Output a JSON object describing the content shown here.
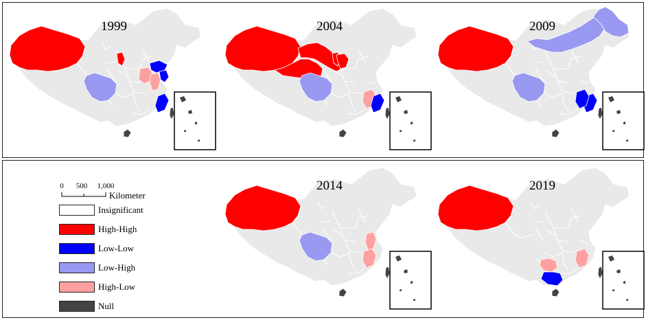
{
  "years": [
    "1999",
    "2004",
    "2009",
    "2014",
    "2019"
  ],
  "colors": {
    "insignificant": "#e9e9e9",
    "high_high": "#ff0000",
    "low_low": "#0000ff",
    "low_high": "#9999f2",
    "high_low": "#ffa0a0",
    "null": "#444444",
    "border": "#ffffff",
    "inset_border": "#000000"
  },
  "scale_bar": {
    "ticks": [
      "0",
      "500",
      "1,000"
    ],
    "unit": "Kilometer"
  },
  "legend": [
    {
      "key": "insignificant",
      "label": "Insignificant"
    },
    {
      "key": "high_high",
      "label": "High-High"
    },
    {
      "key": "low_low",
      "label": "Low-Low"
    },
    {
      "key": "low_high",
      "label": "Low-High"
    },
    {
      "key": "high_low",
      "label": "High-Low"
    },
    {
      "key": "null",
      "label": "Null"
    }
  ],
  "maps": [
    {
      "year": "1999",
      "regions": {
        "xinjiang": "high_high",
        "ningxia": "high_high",
        "sichuan": "low_high",
        "henan": "high_low",
        "shandong": "low_low",
        "jiangsu": "low_low",
        "anhui": "high_low",
        "fujian": "low_low",
        "hainan": "null",
        "taiwan": "null"
      }
    },
    {
      "year": "2004",
      "regions": {
        "xinjiang": "high_high",
        "gansu": "high_high",
        "qinghai": "high_high",
        "ningxia": "high_high",
        "shaanxi_n": "high_high",
        "sichuan": "low_high",
        "jiangxi": "high_low",
        "fujian": "low_low",
        "hainan": "null",
        "taiwan": "null"
      }
    },
    {
      "year": "2009",
      "regions": {
        "xinjiang": "high_high",
        "inner_mongolia": "low_high",
        "heilongjiang": "low_high",
        "sichuan": "low_high",
        "fujian": "low_low",
        "jiangxi": "low_low",
        "hainan": "null",
        "taiwan": "null"
      }
    },
    {
      "year": "2014",
      "regions": {
        "xinjiang": "high_high",
        "sichuan": "low_high",
        "anhui": "high_low",
        "jiangxi": "high_low",
        "hainan": "null",
        "taiwan": "null"
      }
    },
    {
      "year": "2019",
      "regions": {
        "xinjiang": "high_high",
        "guizhou": "high_low",
        "guangxi": "low_low",
        "jiangxi": "high_low",
        "hainan": "null",
        "taiwan": "null"
      }
    }
  ]
}
